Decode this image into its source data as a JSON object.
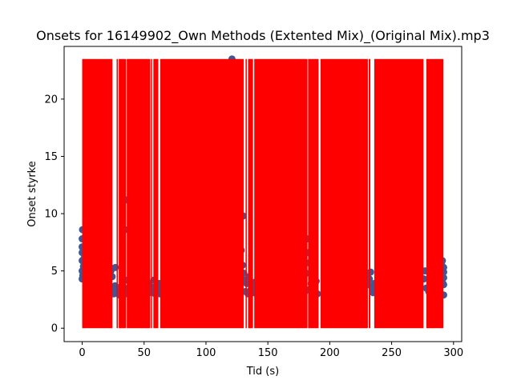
{
  "chart_data": {
    "type": "scatter",
    "title": "Onsets for 16149902_Own Methods (Extented Mix)_(Original Mix).mp3",
    "xlabel": "Tid (s)",
    "ylabel": "Onset styrke",
    "xlim": [
      -14.6,
      306.6
    ],
    "ylim": [
      -1.17,
      24.6
    ],
    "xticks": [
      0,
      50,
      100,
      150,
      200,
      250,
      300
    ],
    "yticks": [
      0,
      5,
      10,
      15,
      20
    ],
    "grid": false,
    "colors": {
      "points": "#3b5998",
      "onset_lines": "#ff0000",
      "axes": "#000000"
    },
    "onset_line_top": 23.5,
    "onset_regions": [
      [
        0,
        24.5
      ],
      [
        27.8,
        28.8
      ],
      [
        29.5,
        35.5
      ],
      [
        36.0,
        55.0
      ],
      [
        55.5,
        56.5
      ],
      [
        57.5,
        61.5
      ],
      [
        63.0,
        130.5
      ],
      [
        132.0,
        133.0
      ],
      [
        134.0,
        138.0
      ],
      [
        139.0,
        182.0
      ],
      [
        182.5,
        191.0
      ],
      [
        192.5,
        230.8
      ],
      [
        231.5,
        232.8
      ],
      [
        236.0,
        275.8
      ],
      [
        278.0,
        291.8
      ]
    ],
    "points": [
      [
        0,
        4.3
      ],
      [
        0,
        5.0
      ],
      [
        0,
        5.9
      ],
      [
        0,
        6.6
      ],
      [
        0,
        7.1
      ],
      [
        0,
        7.8
      ],
      [
        0.3,
        8.6
      ],
      [
        0.5,
        4.6
      ],
      [
        1.0,
        5.4
      ],
      [
        1.5,
        6.1
      ],
      [
        2.5,
        4.8
      ],
      [
        3.5,
        5.2
      ],
      [
        23.2,
        5.0
      ],
      [
        24.2,
        4.5
      ],
      [
        25.0,
        3.5
      ],
      [
        25.5,
        3.0
      ],
      [
        26.5,
        3.7
      ],
      [
        26.8,
        5.3
      ],
      [
        27.5,
        3.4
      ],
      [
        28.5,
        3.1
      ],
      [
        30.0,
        2.9
      ],
      [
        31.0,
        3.6
      ],
      [
        32.0,
        3.2
      ],
      [
        33.0,
        4.0
      ],
      [
        34.0,
        3.1
      ],
      [
        35.0,
        4.2
      ],
      [
        36.0,
        3.0
      ],
      [
        37.0,
        3.5
      ],
      [
        38.0,
        3.3
      ],
      [
        39.0,
        4.1
      ],
      [
        40.0,
        3.0
      ],
      [
        41.0,
        3.8
      ],
      [
        42.0,
        3.2
      ],
      [
        43.0,
        3.6
      ],
      [
        44.0,
        3.0
      ],
      [
        45.0,
        3.9
      ],
      [
        46.0,
        3.3
      ],
      [
        47.0,
        3.7
      ],
      [
        48.0,
        3.1
      ],
      [
        49.0,
        3.5
      ],
      [
        50.0,
        3.2
      ],
      [
        51.0,
        3.8
      ],
      [
        52.0,
        3.4
      ],
      [
        53.0,
        3.0
      ],
      [
        54.0,
        3.9
      ],
      [
        55.0,
        3.3
      ],
      [
        56.0,
        3.6
      ],
      [
        57.0,
        3.1
      ],
      [
        58.0,
        4.2
      ],
      [
        59.0,
        3.0
      ],
      [
        60.0,
        3.7
      ],
      [
        61.0,
        3.3
      ],
      [
        62.0,
        3.9
      ],
      [
        63.0,
        3.0
      ],
      [
        64.5,
        3.4
      ],
      [
        35.5,
        11.2
      ],
      [
        34.5,
        8.6
      ],
      [
        121.0,
        23.5
      ],
      [
        130.0,
        9.8
      ],
      [
        128.5,
        6.8
      ],
      [
        129.5,
        5.5
      ],
      [
        130.5,
        4.8
      ],
      [
        131.0,
        4.2
      ],
      [
        132.0,
        3.2
      ],
      [
        133.0,
        3.9
      ],
      [
        134.0,
        3.0
      ],
      [
        135.0,
        4.5
      ],
      [
        136.0,
        3.3
      ],
      [
        137.0,
        3.8
      ],
      [
        138.0,
        3.1
      ],
      [
        139.0,
        4.0
      ],
      [
        140.0,
        3.4
      ],
      [
        141.0,
        3.0
      ],
      [
        142.0,
        3.6
      ],
      [
        143.0,
        3.2
      ],
      [
        144.0,
        3.8
      ],
      [
        145.0,
        3.0
      ],
      [
        146.0,
        3.5
      ],
      [
        147.0,
        3.3
      ],
      [
        148.0,
        4.0
      ],
      [
        149.0,
        3.1
      ],
      [
        150.0,
        3.6
      ],
      [
        178.0,
        4.1
      ],
      [
        179.0,
        3.6
      ],
      [
        180.0,
        3.2
      ],
      [
        181.0,
        4.8
      ],
      [
        182.0,
        7.8
      ],
      [
        182.5,
        6.6
      ],
      [
        183.0,
        5.7
      ],
      [
        184.0,
        3.4
      ],
      [
        185.0,
        3.9
      ],
      [
        186.0,
        3.1
      ],
      [
        187.0,
        3.7
      ],
      [
        188.0,
        3.3
      ],
      [
        189.0,
        4.1
      ],
      [
        190.0,
        3.0
      ],
      [
        230.0,
        4.6
      ],
      [
        231.0,
        3.8
      ],
      [
        232.0,
        4.3
      ],
      [
        233.0,
        4.9
      ],
      [
        234.0,
        3.6
      ],
      [
        235.0,
        3.1
      ],
      [
        236.0,
        3.9
      ],
      [
        237.0,
        3.4
      ],
      [
        238.0,
        4.0
      ],
      [
        276.0,
        4.3
      ],
      [
        277.0,
        5.0
      ],
      [
        278.0,
        3.5
      ],
      [
        280.0,
        3.2
      ],
      [
        282.0,
        4.1
      ],
      [
        284.0,
        3.4
      ],
      [
        286.0,
        4.0
      ],
      [
        288.0,
        3.3
      ],
      [
        289.0,
        3.7
      ],
      [
        290.0,
        4.4
      ],
      [
        290.5,
        5.5
      ],
      [
        291.0,
        5.9
      ],
      [
        291.5,
        3.9
      ],
      [
        292.0,
        2.9
      ],
      [
        292.0,
        3.8
      ],
      [
        292.0,
        4.4
      ],
      [
        292.0,
        4.9
      ],
      [
        292.0,
        5.3
      ]
    ]
  }
}
